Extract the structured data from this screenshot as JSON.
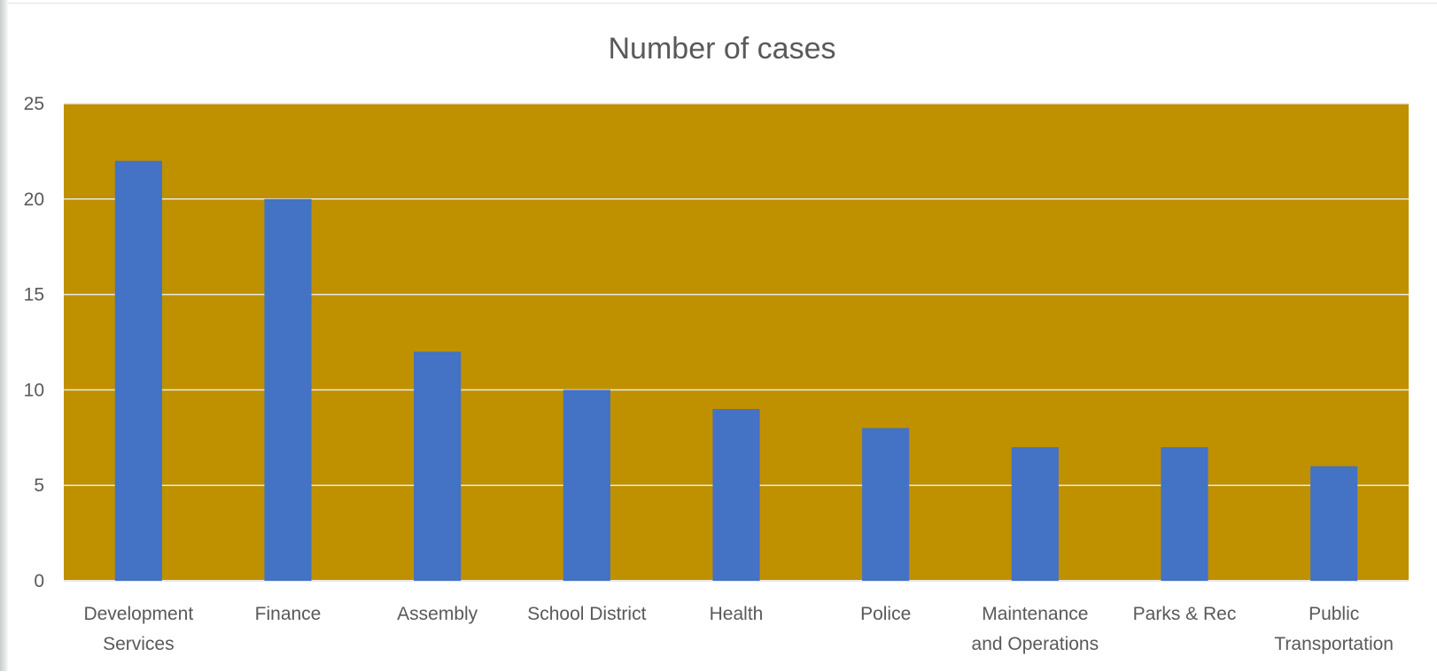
{
  "chart_data": {
    "type": "bar",
    "title": "Number of cases",
    "xlabel": "",
    "ylabel": "",
    "categories": [
      [
        "Development",
        "Services"
      ],
      [
        "Finance"
      ],
      [
        "Assembly"
      ],
      [
        "School District"
      ],
      [
        "Health"
      ],
      [
        "Police"
      ],
      [
        "Maintenance",
        "and Operations"
      ],
      [
        "Parks & Rec"
      ],
      [
        "Public",
        "Transportation"
      ]
    ],
    "values": [
      22,
      20,
      12,
      10,
      9,
      8,
      7,
      7,
      6
    ],
    "ylim": [
      0,
      25
    ],
    "yticks": [
      "0",
      "5",
      "10",
      "15",
      "20",
      "25"
    ],
    "grid": true,
    "legend": "none",
    "colors": {
      "bar": "#4472c4",
      "plot_background": "#bf9000",
      "gridline": "#e8e8e8",
      "text": "#595959"
    }
  }
}
